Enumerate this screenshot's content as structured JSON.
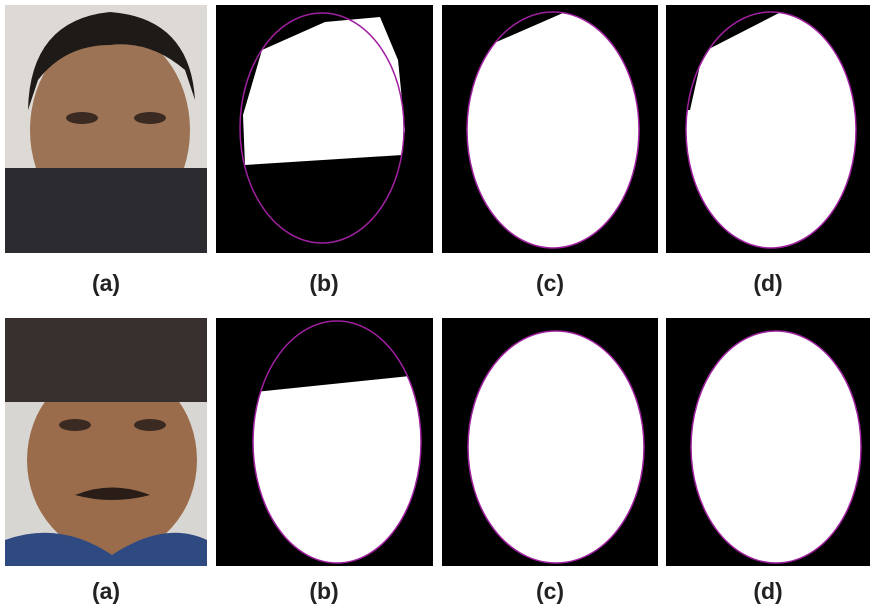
{
  "figure": {
    "rows": [
      {
        "labels": [
          "(a)",
          "(b)",
          "(c)",
          "(d)"
        ]
      },
      {
        "labels": [
          "(a)",
          "(b)",
          "(c)",
          "(d)"
        ]
      }
    ]
  }
}
